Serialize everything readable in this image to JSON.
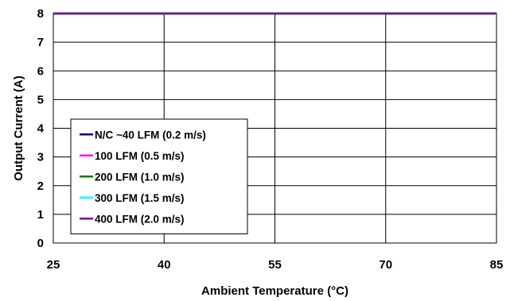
{
  "chart_data": {
    "type": "line",
    "title": "",
    "xlabel": "Ambient Temperature (°C)",
    "ylabel": "Output Current (A)",
    "xlim": [
      25,
      85
    ],
    "ylim": [
      0,
      8
    ],
    "x_ticks": [
      25,
      40,
      55,
      70,
      85
    ],
    "y_ticks": [
      0,
      1,
      2,
      3,
      4,
      5,
      6,
      7,
      8
    ],
    "grid": true,
    "legend_position": "lower-left",
    "x": [
      25,
      40,
      55,
      70,
      85
    ],
    "series": [
      {
        "name": "N/C ~40 LFM (0.2 m/s)",
        "color": "#000080",
        "values": [
          8,
          8,
          8,
          8,
          8
        ]
      },
      {
        "name": "100 LFM (0.5 m/s)",
        "color": "#FF00FF",
        "values": [
          8,
          8,
          8,
          8,
          8
        ]
      },
      {
        "name": "200 LFM (1.0 m/s)",
        "color": "#008000",
        "values": [
          8,
          8,
          8,
          8,
          8
        ]
      },
      {
        "name": "300 LFM (1.5 m/s)",
        "color": "#00FFFF",
        "values": [
          8,
          8,
          8,
          8,
          8
        ]
      },
      {
        "name": "400 LFM (2.0 m/s)",
        "color": "#800080",
        "values": [
          8,
          8,
          8,
          8,
          8
        ]
      }
    ]
  }
}
